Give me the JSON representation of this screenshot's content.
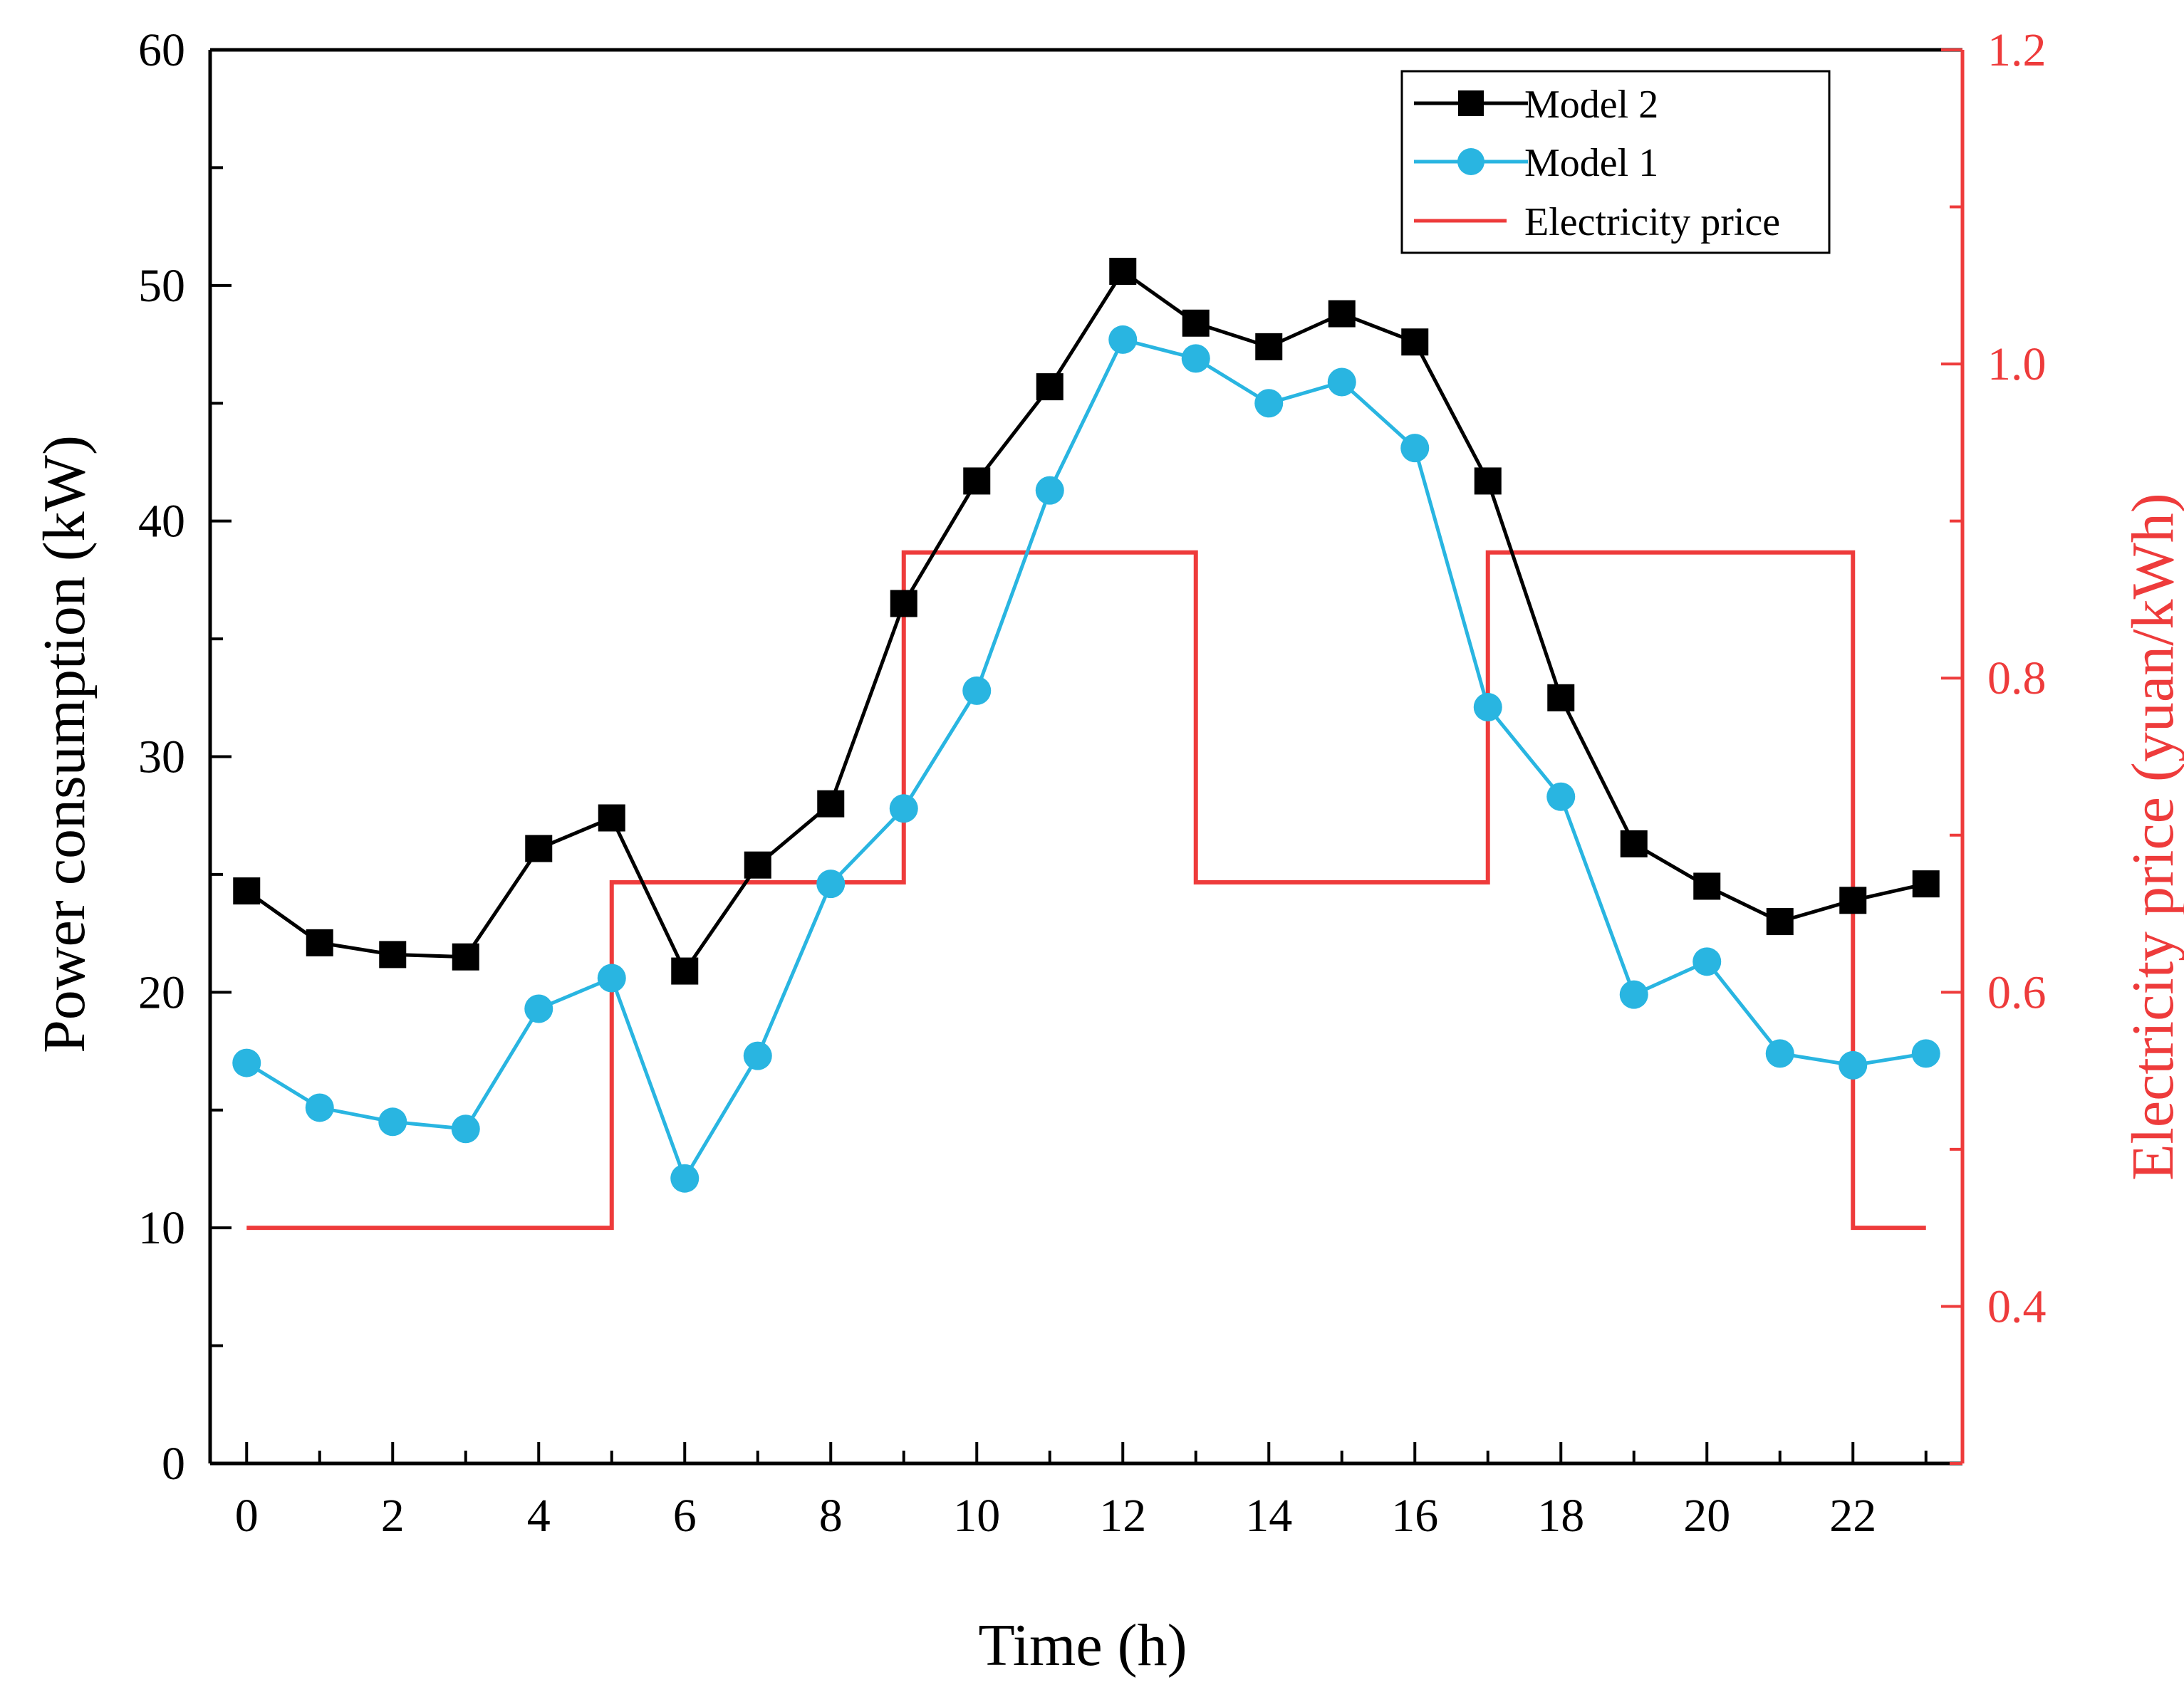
{
  "chart_data": {
    "type": "line",
    "xlabel": "Time (h)",
    "ylabel": "Power consumption (kW)",
    "y2label": "Electricity price (yuan/kWh)",
    "xlim": [
      -0.5,
      23.5
    ],
    "ylim": [
      0,
      60
    ],
    "y2lim": [
      0.3,
      1.2
    ],
    "x_ticks": [
      0,
      2,
      4,
      6,
      8,
      10,
      12,
      14,
      16,
      18,
      20,
      22
    ],
    "x_tick_labels": [
      "0",
      "2",
      "4",
      "6",
      "8",
      "10",
      "12",
      "14",
      "16",
      "18",
      "20",
      "22"
    ],
    "y_ticks": [
      0,
      10,
      20,
      30,
      40,
      50,
      60
    ],
    "y_tick_labels": [
      "0",
      "10",
      "20",
      "30",
      "40",
      "50",
      "60"
    ],
    "y2_ticks": [
      0.4,
      0.6,
      0.8,
      1.0,
      1.2
    ],
    "y2_tick_labels": [
      "0.4",
      "0.6",
      "0.8",
      "1.0",
      "1.2"
    ],
    "legend_position": "top-right",
    "grid": false,
    "x": [
      0,
      1,
      2,
      3,
      4,
      5,
      6,
      7,
      8,
      9,
      10,
      11,
      12,
      13,
      14,
      15,
      16,
      17,
      18,
      19,
      20,
      21,
      22,
      23
    ],
    "series": [
      {
        "name": "Model 2",
        "marker": "square",
        "color": "#000000",
        "values": [
          24.3,
          22.1,
          21.6,
          21.5,
          26.1,
          27.4,
          20.9,
          25.4,
          28.0,
          36.5,
          41.7,
          45.7,
          50.6,
          48.4,
          47.4,
          48.8,
          47.6,
          41.7,
          32.5,
          26.3,
          24.5,
          23.0,
          23.9,
          24.6
        ]
      },
      {
        "name": "Model 1",
        "marker": "circle",
        "color": "#29B5E1",
        "values": [
          17.0,
          15.1,
          14.5,
          14.2,
          19.3,
          20.6,
          12.1,
          17.3,
          24.6,
          27.8,
          32.8,
          41.3,
          47.7,
          46.9,
          45.0,
          45.9,
          43.1,
          32.1,
          28.3,
          19.9,
          21.3,
          17.4,
          16.9,
          17.4
        ]
      }
    ],
    "price_series": {
      "name": "Electricity price",
      "color": "#EE3B3B",
      "axis": "right",
      "steps": [
        {
          "from": 0,
          "to": 5,
          "value": 0.45
        },
        {
          "from": 5,
          "to": 9,
          "value": 0.67
        },
        {
          "from": 9,
          "to": 13,
          "value": 0.88
        },
        {
          "from": 13,
          "to": 17,
          "value": 0.67
        },
        {
          "from": 17,
          "to": 22,
          "value": 0.88
        },
        {
          "from": 22,
          "to": 23,
          "value": 0.45
        }
      ]
    }
  }
}
